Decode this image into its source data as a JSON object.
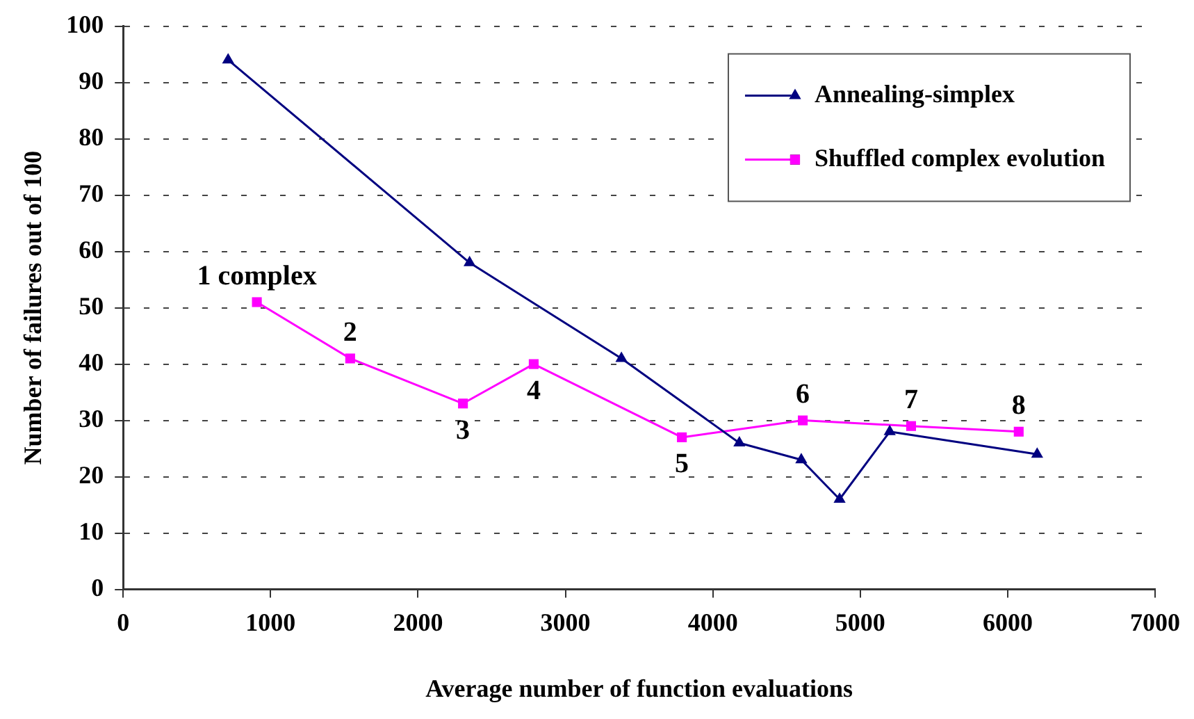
{
  "chart_data": {
    "type": "line",
    "xlabel": "Average number of function evaluations",
    "ylabel": "Number of failures out of 100",
    "xlim": [
      0,
      7000
    ],
    "xticks": [
      0,
      1000,
      2000,
      3000,
      4000,
      5000,
      6000,
      7000
    ],
    "ylim": [
      0,
      100
    ],
    "yticks": [
      0,
      10,
      20,
      30,
      40,
      50,
      60,
      70,
      80,
      90,
      100
    ],
    "grid": "y",
    "legend": "top right",
    "line_style": "solid",
    "series": [
      {
        "name": "Annealing-simplex",
        "color": "#000080",
        "marker": "triangle",
        "x": [
          712,
          2350,
          3380,
          4180,
          4600,
          4860,
          5200,
          6200
        ],
        "values": [
          94,
          58,
          41,
          26,
          23,
          16,
          28,
          24
        ]
      },
      {
        "name": "Shuffled complex evolution",
        "color": "#ff00ff",
        "marker": "square",
        "x": [
          907,
          1540,
          2305,
          2785,
          3790,
          4610,
          5345,
          6075
        ],
        "values": [
          51,
          41,
          33,
          40,
          27,
          30,
          29,
          28
        ]
      }
    ],
    "annotations": [
      {
        "text": "1 complex",
        "x": 907,
        "y": 51
      },
      {
        "text": "2",
        "x": 1540,
        "y": 41
      },
      {
        "text": "3",
        "x": 2305,
        "y": 33
      },
      {
        "text": "4",
        "x": 2785,
        "y": 40
      },
      {
        "text": "5",
        "x": 3790,
        "y": 27
      },
      {
        "text": "6",
        "x": 4610,
        "y": 30
      },
      {
        "text": "7",
        "x": 5345,
        "y": 29
      },
      {
        "text": "8",
        "x": 6075,
        "y": 28
      }
    ]
  }
}
